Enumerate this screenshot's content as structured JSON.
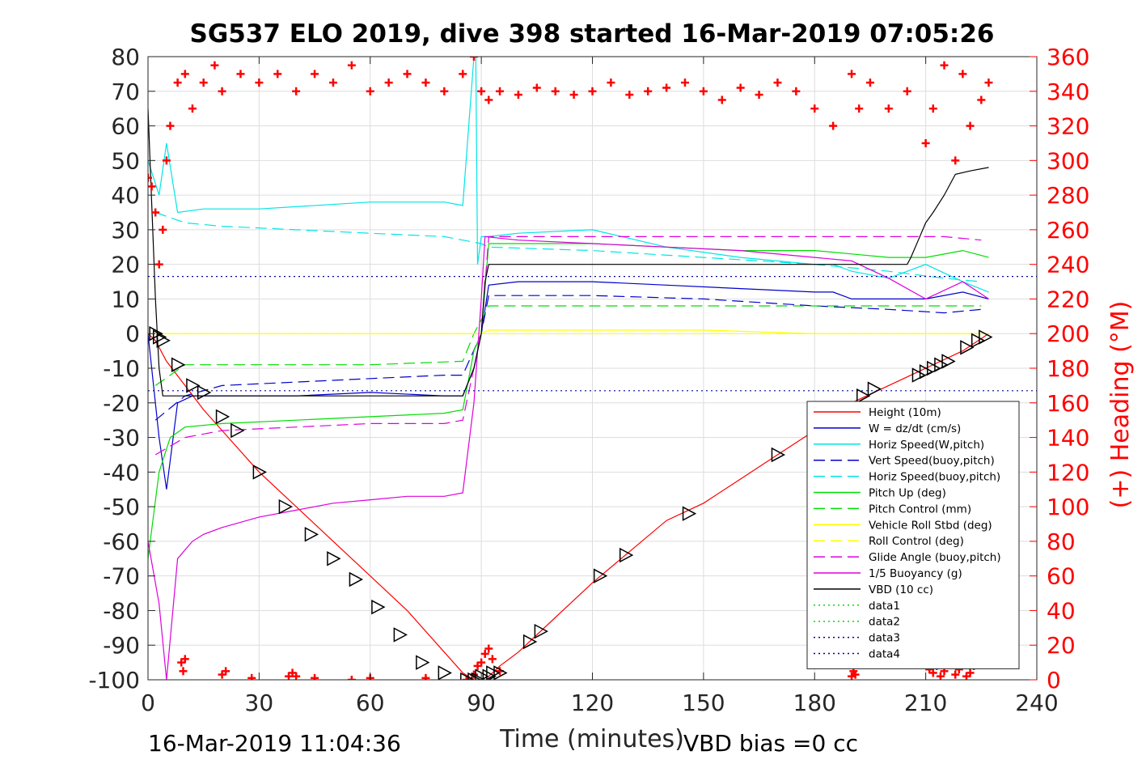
{
  "chart_data": {
    "type": "line",
    "title": "SG537 ELO 2019, dive 398 started 16-Mar-2019 07:05:26",
    "xlabel": "Time (minutes)",
    "ylabel_right": "(+) Heading (°M)",
    "footer_left": "16-Mar-2019 11:04:36",
    "footer_right": "VBD bias =0 cc",
    "xlim": [
      0,
      240
    ],
    "ylim": [
      -100,
      80
    ],
    "ylim_right": [
      0,
      360
    ],
    "x_ticks": [
      0,
      30,
      60,
      90,
      120,
      150,
      180,
      210,
      240
    ],
    "y_ticks": [
      -100,
      -90,
      -80,
      -70,
      -60,
      -50,
      -40,
      -30,
      -20,
      -10,
      0,
      10,
      20,
      30,
      40,
      50,
      60,
      70,
      80
    ],
    "y_ticks_right": [
      0,
      20,
      40,
      60,
      80,
      100,
      120,
      140,
      160,
      180,
      200,
      220,
      240,
      260,
      280,
      300,
      320,
      340,
      360
    ],
    "grid": true,
    "legend_position": "bottom-right",
    "series": [
      {
        "name": "Height (10m)",
        "color": "#ff0000",
        "style": "solid",
        "x": [
          0,
          2,
          5,
          10,
          15,
          20,
          30,
          40,
          50,
          60,
          70,
          80,
          85,
          88,
          90,
          92,
          95,
          100,
          110,
          120,
          130,
          140,
          150,
          160,
          170,
          180,
          190,
          200,
          210,
          220,
          227
        ],
        "y": [
          0,
          -2,
          -8,
          -15,
          -22,
          -28,
          -40,
          -50,
          -60,
          -70,
          -80,
          -92,
          -98,
          -100,
          -100,
          -99,
          -96,
          -92,
          -82,
          -72,
          -63,
          -54,
          -49,
          -42,
          -35,
          -28,
          -20,
          -15,
          -10,
          -5,
          0
        ]
      },
      {
        "name": "W = dz/dt (cm/s)",
        "color": "#0000cc",
        "style": "solid",
        "x": [
          0,
          3,
          5,
          8,
          12,
          20,
          40,
          60,
          80,
          85,
          88,
          90,
          92,
          100,
          120,
          140,
          160,
          180,
          185,
          190,
          200,
          210,
          220,
          227
        ],
        "y": [
          0,
          -30,
          -45,
          -20,
          -18,
          -18,
          -18,
          -17,
          -18,
          -18,
          -10,
          0,
          14,
          15,
          15,
          14,
          13,
          12,
          12,
          10,
          10,
          10,
          12,
          10
        ]
      },
      {
        "name": "Horiz Speed(W,pitch)",
        "color": "#00e5e5",
        "style": "solid",
        "x": [
          0,
          3,
          5,
          8,
          15,
          30,
          60,
          80,
          85,
          88,
          88.5,
          89,
          90,
          92,
          100,
          120,
          140,
          160,
          180,
          185,
          190,
          200,
          210,
          220,
          227
        ],
        "y": [
          50,
          40,
          55,
          35,
          36,
          36,
          38,
          38,
          37,
          80,
          80,
          20,
          28,
          28,
          29,
          30,
          25,
          22,
          20,
          20,
          18,
          16,
          20,
          15,
          12
        ]
      },
      {
        "name": "Vert Speed(buoy,pitch)",
        "color": "#0000cc",
        "style": "dashed",
        "x": [
          2,
          10,
          20,
          40,
          60,
          80,
          85,
          90,
          92,
          120,
          150,
          180,
          200,
          215,
          225
        ],
        "y": [
          -25,
          -18,
          -15,
          -14,
          -13,
          -12,
          -12,
          0,
          11,
          11,
          10,
          8,
          7,
          6,
          7
        ]
      },
      {
        "name": "Horiz Speed(buoy,pitch)",
        "color": "#00e5e5",
        "style": "dashed",
        "x": [
          2,
          10,
          20,
          40,
          60,
          80,
          85,
          90,
          92,
          120,
          150,
          180,
          200,
          215,
          225
        ],
        "y": [
          35,
          32,
          31,
          30,
          29,
          28,
          27,
          26,
          25,
          24,
          22,
          20,
          18,
          16,
          15
        ]
      },
      {
        "name": "Pitch Up (deg)",
        "color": "#00dd00",
        "style": "solid",
        "x": [
          0,
          3,
          6,
          10,
          20,
          40,
          60,
          80,
          85,
          88,
          90,
          92,
          100,
          120,
          140,
          160,
          180,
          190,
          200,
          210,
          220,
          227
        ],
        "y": [
          -65,
          -40,
          -30,
          -27,
          -26,
          -25,
          -24,
          -23,
          -22,
          -5,
          0,
          26,
          26,
          26,
          25,
          24,
          24,
          23,
          22,
          22,
          24,
          22
        ]
      },
      {
        "name": "Pitch Control (mm)",
        "color": "#00dd00",
        "style": "dashed",
        "x": [
          2,
          10,
          40,
          60,
          85,
          88,
          92,
          120,
          150,
          180,
          200,
          225
        ],
        "y": [
          -15,
          -9,
          -9,
          -9,
          -8,
          0,
          8,
          8,
          8,
          8,
          8,
          8
        ]
      },
      {
        "name": "Vehicle Roll Stbd (deg)",
        "color": "#ffff00",
        "style": "solid",
        "x": [
          0,
          5,
          10,
          20,
          40,
          60,
          85,
          88,
          90,
          92,
          120,
          150,
          180,
          200,
          210,
          220,
          227
        ],
        "y": [
          0,
          0,
          0,
          0,
          0,
          0,
          0,
          0,
          0,
          1,
          1,
          1,
          0,
          0,
          0,
          0,
          0
        ]
      },
      {
        "name": "Roll Control (deg)",
        "color": "#ffff00",
        "style": "dashed",
        "x": [
          0,
          5,
          10,
          40,
          85,
          92,
          120,
          150,
          180,
          210,
          227
        ],
        "y": [
          0,
          0,
          0,
          0,
          0,
          0,
          0,
          0,
          0,
          0,
          0
        ]
      },
      {
        "name": "Glide Angle (buoy,pitch)",
        "color": "#dd00dd",
        "style": "dashed",
        "x": [
          2,
          10,
          20,
          40,
          60,
          80,
          85,
          90,
          92,
          120,
          150,
          180,
          200,
          215,
          225
        ],
        "y": [
          -35,
          -30,
          -28,
          -27,
          -26,
          -26,
          -25,
          0,
          28,
          28,
          28,
          28,
          28,
          28,
          27
        ]
      },
      {
        "name": "1/5 Buoyancy (g)",
        "color": "#dd00dd",
        "style": "solid",
        "x": [
          0,
          3,
          5,
          8,
          12,
          15,
          20,
          30,
          40,
          50,
          60,
          70,
          80,
          85,
          88,
          90,
          91,
          100,
          120,
          140,
          160,
          180,
          190,
          200,
          210,
          220,
          227
        ],
        "y": [
          -60,
          -78,
          -100,
          -65,
          -60,
          -58,
          -56,
          -53,
          -51,
          -49,
          -48,
          -47,
          -47,
          -46,
          -20,
          10,
          28,
          27,
          26,
          25,
          24,
          22,
          21,
          16,
          10,
          15,
          10
        ]
      },
      {
        "name": "VBD (10 cc)",
        "color": "#000000",
        "style": "solid",
        "x": [
          0,
          2,
          3,
          4,
          20,
          40,
          60,
          80,
          85,
          88,
          90,
          91,
          92,
          120,
          150,
          180,
          195,
          205,
          206,
          208,
          210,
          212,
          215,
          218,
          222,
          227
        ],
        "y": [
          65,
          10,
          -10,
          -18,
          -18,
          -18,
          -18,
          -18,
          -18,
          -10,
          0,
          15,
          20,
          20,
          20,
          20,
          20,
          20,
          22,
          27,
          32,
          35,
          40,
          46,
          47,
          48
        ]
      },
      {
        "name": "data1",
        "color": "#00dd00",
        "style": "dotted",
        "x": [],
        "y": []
      },
      {
        "name": "data2",
        "color": "#00dd00",
        "style": "dotted",
        "x": [],
        "y": []
      },
      {
        "name": "data3",
        "color": "#000099",
        "style": "dotted",
        "x": [
          0,
          240
        ],
        "y": [
          16.5,
          16.5
        ]
      },
      {
        "name": "data4",
        "color": "#000099",
        "style": "dotted",
        "x": [
          0,
          240
        ],
        "y": [
          -16.5,
          -16.5
        ]
      }
    ],
    "heading_series": {
      "name": "Heading (°M)",
      "color": "#ff0000",
      "marker": "+",
      "axis": "right",
      "x": [
        0,
        1,
        2,
        3,
        4,
        5,
        6,
        8,
        10,
        12,
        15,
        18,
        20,
        25,
        30,
        35,
        40,
        45,
        50,
        55,
        60,
        65,
        70,
        75,
        80,
        85,
        88,
        90,
        92,
        95,
        100,
        105,
        110,
        115,
        120,
        125,
        130,
        135,
        140,
        145,
        150,
        155,
        160,
        165,
        170,
        175,
        180,
        185,
        190,
        192,
        195,
        200,
        205,
        210,
        212,
        215,
        218,
        220,
        222,
        225,
        227
      ],
      "y": [
        290,
        285,
        270,
        240,
        260,
        300,
        320,
        345,
        350,
        330,
        345,
        355,
        340,
        350,
        345,
        350,
        340,
        350,
        345,
        355,
        340,
        345,
        350,
        345,
        340,
        350,
        360,
        340,
        335,
        340,
        338,
        342,
        340,
        338,
        340,
        345,
        338,
        340,
        342,
        345,
        340,
        335,
        342,
        338,
        345,
        340,
        330,
        320,
        350,
        330,
        345,
        330,
        340,
        310,
        330,
        355,
        300,
        350,
        320,
        335,
        345
      ]
    },
    "heading_near_zero": {
      "x": [
        9,
        9.5,
        10,
        20,
        21,
        28,
        38,
        39,
        40,
        45,
        55,
        60,
        75,
        86,
        88,
        89,
        90,
        91,
        92,
        93,
        95,
        190,
        190.5,
        191,
        211,
        212,
        213,
        214,
        215,
        216,
        218,
        219,
        220,
        221,
        222,
        223
      ],
      "y": [
        10,
        5,
        12,
        3,
        5,
        1,
        2,
        4,
        2,
        1,
        0,
        1,
        1,
        0,
        3,
        8,
        10,
        15,
        18,
        12,
        5,
        2,
        5,
        3,
        6,
        4,
        8,
        2,
        5,
        10,
        3,
        6,
        9,
        2,
        4,
        8
      ]
    },
    "markers": {
      "x": [
        2,
        3,
        4,
        8,
        12,
        15,
        20,
        24,
        30,
        37,
        44,
        50,
        56,
        62,
        68,
        74,
        80,
        86,
        88,
        89,
        90,
        92,
        93,
        95,
        103,
        106,
        122,
        129,
        146,
        170,
        193,
        196,
        208,
        210,
        212,
        214,
        216,
        221,
        224,
        226
      ],
      "y": [
        0,
        -1,
        -2,
        -9,
        -15,
        -17,
        -24,
        -28,
        -40,
        -50,
        -58,
        -65,
        -71,
        -79,
        -87,
        -95,
        -98,
        -100,
        -100,
        -100,
        -99,
        -99,
        -98,
        -98,
        -89,
        -86,
        -70,
        -64,
        -52,
        -35,
        -18,
        -16,
        -12,
        -11,
        -10,
        -9,
        -8,
        -4,
        -2,
        -1
      ]
    }
  }
}
